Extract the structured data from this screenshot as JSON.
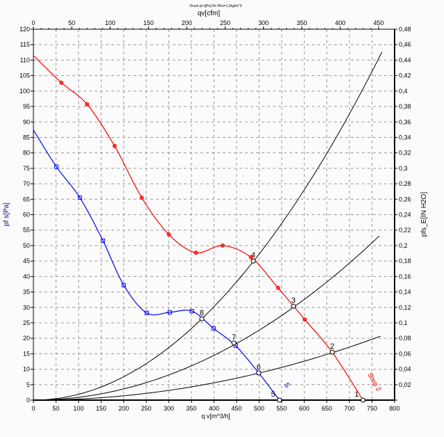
{
  "chart_data": {
    "type": "line",
    "title": "Druck pf s[Pa] für Rho=1,2kg/m^3",
    "xlabel": "q v[m^3/h]",
    "ylabel": "pf s[Pa]",
    "x2label": "qv[cfm]",
    "y2label": "pfs_E[IN H2O]",
    "xlim": [
      0,
      800
    ],
    "ylim": [
      0,
      120
    ],
    "x2lim": [
      0,
      450
    ],
    "y2lim": [
      0,
      0.48
    ],
    "grid": true,
    "xticks": [
      "0",
      "50",
      "100",
      "150",
      "200",
      "250",
      "300",
      "350",
      "400",
      "450",
      "500",
      "550",
      "600",
      "650",
      "700",
      "750",
      "800"
    ],
    "yticks": [
      "0",
      "5",
      "10",
      "15",
      "20",
      "25",
      "30",
      "35",
      "40",
      "45",
      "50",
      "55",
      "60",
      "65",
      "70",
      "75",
      "80",
      "85",
      "90",
      "95",
      "100",
      "105",
      "110",
      "115",
      "120"
    ],
    "x2ticks": [
      "0",
      "50",
      "100",
      "150",
      "200",
      "250",
      "300",
      "350",
      "400",
      "450"
    ],
    "y2ticks": [
      "0",
      "0,02",
      "0,04",
      "0,06",
      "0,08",
      "0,1",
      "0,12",
      "0,14",
      "0,16",
      "0,18",
      "0,2",
      "0,22",
      "0,24",
      "0,26",
      "0,28",
      "0,3",
      "0,32",
      "0,34",
      "0,36",
      "0,38",
      "0,4",
      "0,42",
      "0,44",
      "0,46",
      "0,48"
    ],
    "colors": {
      "step2": "#ff0000",
      "step1": "#0000ff",
      "system": "#000000",
      "grid": "#999999"
    },
    "series": [
      {
        "name": "Step 2",
        "color": "#ff0000",
        "marker": "circle",
        "x": [
          0,
          62,
          119,
          180,
          240,
          300,
          360,
          419,
          482,
          542,
          601,
          662,
          730
        ],
        "y": [
          111.5,
          102.7,
          95.7,
          82.2,
          65.5,
          53.6,
          47.7,
          50.0,
          46.2,
          36.3,
          26.1,
          15.5,
          0
        ]
      },
      {
        "name": "S",
        "color": "#0000ff",
        "marker": "square",
        "x": [
          0,
          51,
          103,
          154,
          200,
          251,
          302,
          351,
          399,
          448,
          499,
          545
        ],
        "y": [
          87.4,
          75.5,
          65.5,
          51.6,
          37.2,
          28.2,
          28.4,
          28.8,
          23.2,
          17.6,
          8.8,
          0
        ]
      }
    ],
    "system_curves": [
      {
        "k": 0.000189,
        "xmax": 772
      },
      {
        "k": 9.05e-05,
        "xmax": 766
      },
      {
        "k": 3.5e-05,
        "xmax": 769
      }
    ],
    "operating_points": [
      {
        "label": "1",
        "x": 730,
        "y": 0
      },
      {
        "label": "2",
        "x": 662,
        "y": 15.5
      },
      {
        "label": "3",
        "x": 576,
        "y": 30.4
      },
      {
        "label": "4",
        "x": 487,
        "y": 45.0
      },
      {
        "label": "5",
        "x": 545,
        "y": 0
      },
      {
        "label": "6",
        "x": 499,
        "y": 8.8
      },
      {
        "label": "7",
        "x": 444,
        "y": 18.5
      },
      {
        "label": "8",
        "x": 373,
        "y": 26.3
      }
    ]
  }
}
